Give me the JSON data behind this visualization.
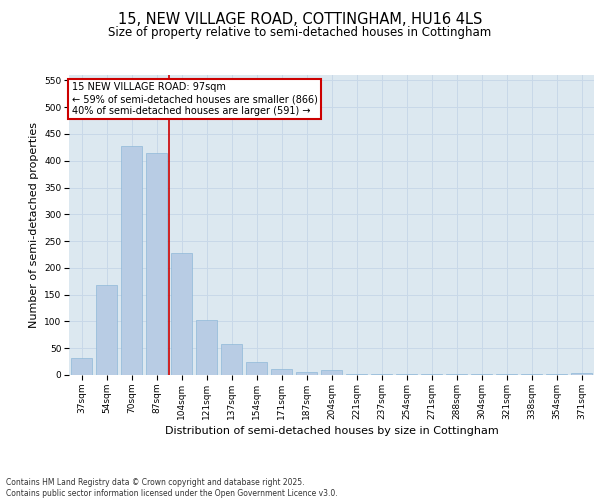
{
  "title1": "15, NEW VILLAGE ROAD, COTTINGHAM, HU16 4LS",
  "title2": "Size of property relative to semi-detached houses in Cottingham",
  "xlabel": "Distribution of semi-detached houses by size in Cottingham",
  "ylabel": "Number of semi-detached properties",
  "categories": [
    "37sqm",
    "54sqm",
    "70sqm",
    "87sqm",
    "104sqm",
    "121sqm",
    "137sqm",
    "154sqm",
    "171sqm",
    "187sqm",
    "204sqm",
    "221sqm",
    "237sqm",
    "254sqm",
    "271sqm",
    "288sqm",
    "304sqm",
    "321sqm",
    "338sqm",
    "354sqm",
    "371sqm"
  ],
  "values": [
    32,
    168,
    427,
    415,
    228,
    103,
    58,
    24,
    12,
    6,
    10,
    2,
    1,
    1,
    1,
    1,
    1,
    1,
    1,
    1,
    4
  ],
  "bar_color": "#b8cce4",
  "bar_edge_color": "#8fb8d8",
  "vline_x": 3.5,
  "vline_color": "#cc0000",
  "annotation_text": "15 NEW VILLAGE ROAD: 97sqm\n← 59% of semi-detached houses are smaller (866)\n40% of semi-detached houses are larger (591) →",
  "annotation_box_color": "#ffffff",
  "annotation_box_edge": "#cc0000",
  "ylim": [
    0,
    560
  ],
  "yticks": [
    0,
    50,
    100,
    150,
    200,
    250,
    300,
    350,
    400,
    450,
    500,
    550
  ],
  "grid_color": "#c8d8e8",
  "background_color": "#dce8f0",
  "footer": "Contains HM Land Registry data © Crown copyright and database right 2025.\nContains public sector information licensed under the Open Government Licence v3.0.",
  "title_fontsize": 10.5,
  "subtitle_fontsize": 8.5,
  "tick_fontsize": 6.5,
  "axis_label_fontsize": 8,
  "footer_fontsize": 5.5
}
